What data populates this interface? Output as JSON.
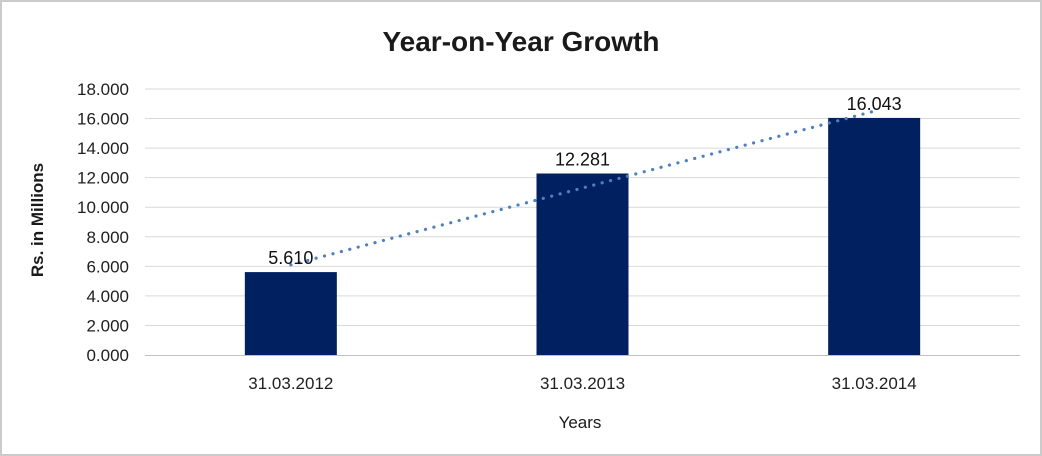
{
  "chart_data": {
    "type": "bar",
    "title": "Year-on-Year Growth",
    "xlabel": "Years",
    "ylabel": "Rs. in Millions",
    "categories": [
      "31.03.2012",
      "31.03.2013",
      "31.03.2014"
    ],
    "series": [
      {
        "name": "Rs. in Millions",
        "values": [
          5610,
          12281,
          16043
        ]
      }
    ],
    "data_labels": [
      "5.610",
      "12.281",
      "16.043"
    ],
    "y_ticks": [
      {
        "label": "0.000",
        "value": 0
      },
      {
        "label": "2.000",
        "value": 2000
      },
      {
        "label": "4.000",
        "value": 4000
      },
      {
        "label": "6.000",
        "value": 6000
      },
      {
        "label": "8.000",
        "value": 8000
      },
      {
        "label": "10.000",
        "value": 10000
      },
      {
        "label": "12.000",
        "value": 12000
      },
      {
        "label": "14.000",
        "value": 14000
      },
      {
        "label": "16.000",
        "value": 16000
      },
      {
        "label": "18.000",
        "value": 18000
      }
    ],
    "ylim": [
      0,
      18000
    ],
    "grid": true,
    "legend": "none",
    "trendline": {
      "style": "dotted",
      "start_value": 6100,
      "end_value": 16500,
      "color": "#4f81bd"
    },
    "colors": {
      "bar": "#002060",
      "trendline": "#4f81bd",
      "gridline": "#d9d9d9",
      "axis_line": "#c0c0c0",
      "text": "#1f1f1f",
      "frame_border": "#cbcbcb",
      "background": "#ffffff"
    }
  }
}
